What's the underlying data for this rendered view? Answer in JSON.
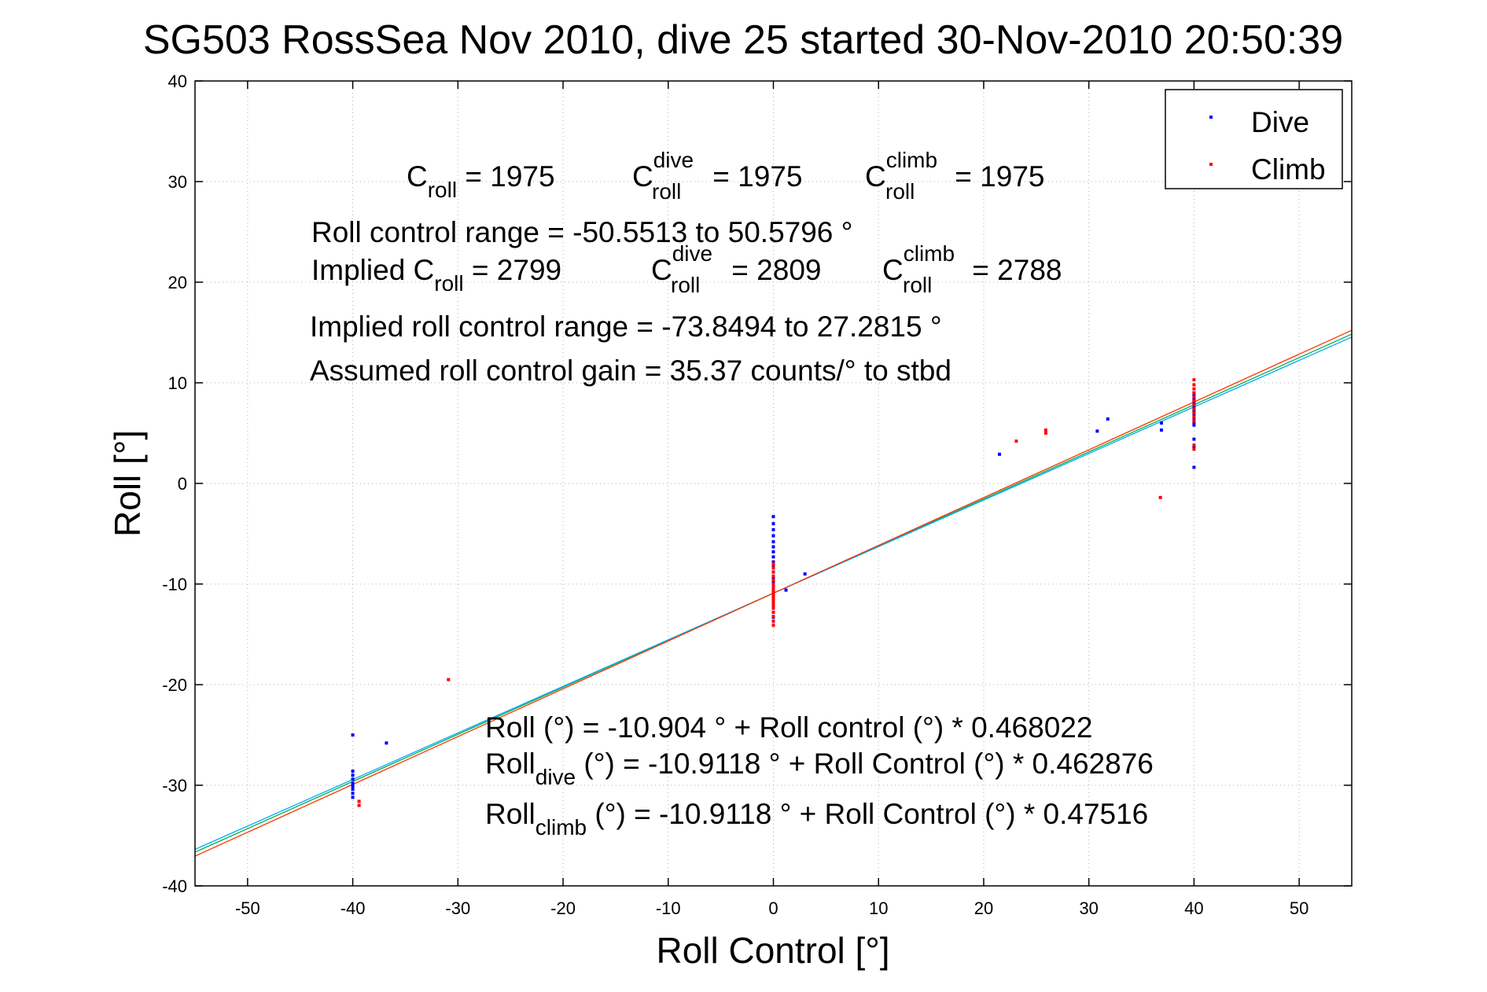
{
  "chart_data": {
    "type": "scatter",
    "title": "SG503 RossSea Nov 2010, dive 25 started 30-Nov-2010 20:50:39",
    "xlabel": "Roll Control [°]",
    "ylabel": "Roll [°]",
    "xlim": [
      -55,
      55
    ],
    "ylim": [
      -40,
      40
    ],
    "xticks": [
      -50,
      -40,
      -30,
      -20,
      -10,
      0,
      10,
      20,
      30,
      40,
      50
    ],
    "yticks": [
      -40,
      -30,
      -20,
      -10,
      0,
      10,
      20,
      30,
      40
    ],
    "xtick_labels": [
      "-50",
      "-40",
      "-30",
      "-20",
      "-10",
      "0",
      "10",
      "20",
      "30",
      "40",
      "50"
    ],
    "ytick_labels": [
      "-40",
      "-30",
      "-20",
      "-10",
      "0",
      "10",
      "20",
      "30",
      "40"
    ],
    "grid": true,
    "grid_style": "dotted",
    "legend": {
      "position": "top-right",
      "entries": [
        "Dive",
        "Climb"
      ]
    },
    "colors": {
      "dive": "#0000ff",
      "climb": "#ff0000",
      "fit_all": "#00b050",
      "fit_dive": "#00aaff",
      "fit_climb": "#ff3300"
    },
    "series": [
      {
        "name": "Dive",
        "color": "#0000ff",
        "points": [
          [
            -40,
            -25.0
          ],
          [
            -40,
            -28.6
          ],
          [
            -40,
            -29.0
          ],
          [
            -40,
            -29.4
          ],
          [
            -40,
            -29.8
          ],
          [
            -40,
            -30.1
          ],
          [
            -40,
            -30.4
          ],
          [
            -40,
            -30.8
          ],
          [
            -40,
            -31.2
          ],
          [
            -36.8,
            -25.8
          ],
          [
            0,
            -3.3
          ],
          [
            0,
            -4.0
          ],
          [
            0,
            -4.6
          ],
          [
            0,
            -5.2
          ],
          [
            0,
            -5.8
          ],
          [
            0,
            -6.3
          ],
          [
            0,
            -6.8
          ],
          [
            0,
            -7.3
          ],
          [
            0,
            -7.8
          ],
          [
            0,
            -8.3
          ],
          [
            0,
            -8.8
          ],
          [
            0,
            -9.3
          ],
          [
            0,
            -9.8
          ],
          [
            0,
            -10.2
          ],
          [
            0,
            -10.6
          ],
          [
            0,
            -11.0
          ],
          [
            0,
            -11.4
          ],
          [
            0,
            -11.8
          ],
          [
            0,
            -12.3
          ],
          [
            0,
            -12.8
          ],
          [
            0,
            -13.3
          ],
          [
            0,
            -13.7
          ],
          [
            1.2,
            -10.6
          ],
          [
            3.0,
            -9.0
          ],
          [
            21.5,
            2.9
          ],
          [
            30.8,
            5.2
          ],
          [
            31.8,
            6.4
          ],
          [
            36.9,
            6.0
          ],
          [
            36.9,
            5.3
          ],
          [
            40,
            9.0
          ],
          [
            40,
            8.7
          ],
          [
            40,
            8.4
          ],
          [
            40,
            8.1
          ],
          [
            40,
            7.8
          ],
          [
            40,
            7.5
          ],
          [
            40,
            7.2
          ],
          [
            40,
            6.9
          ],
          [
            40,
            6.5
          ],
          [
            40,
            6.1
          ],
          [
            40,
            5.8
          ],
          [
            40,
            4.4
          ],
          [
            40,
            3.6
          ],
          [
            40,
            1.6
          ]
        ]
      },
      {
        "name": "Climb",
        "color": "#ff0000",
        "points": [
          [
            -39.4,
            -31.6
          ],
          [
            -39.4,
            -32.0
          ],
          [
            -30.9,
            -19.5
          ],
          [
            0,
            -8.0
          ],
          [
            0,
            -8.4
          ],
          [
            0,
            -8.8
          ],
          [
            0,
            -9.2
          ],
          [
            0,
            -9.6
          ],
          [
            0,
            -10.0
          ],
          [
            0,
            -10.3
          ],
          [
            0,
            -10.6
          ],
          [
            0,
            -10.9
          ],
          [
            0,
            -11.2
          ],
          [
            0,
            -11.5
          ],
          [
            0,
            -11.8
          ],
          [
            0,
            -12.1
          ],
          [
            0,
            -12.4
          ],
          [
            0,
            -12.8
          ],
          [
            0,
            -13.2
          ],
          [
            0,
            -13.7
          ],
          [
            0,
            -14.1
          ],
          [
            23.1,
            4.2
          ],
          [
            25.9,
            5.0
          ],
          [
            25.9,
            5.3
          ],
          [
            36.8,
            -1.4
          ],
          [
            40,
            10.3
          ],
          [
            40,
            9.8
          ],
          [
            40,
            9.4
          ],
          [
            40,
            9.0
          ],
          [
            40,
            8.6
          ],
          [
            40,
            8.2
          ],
          [
            40,
            7.8
          ],
          [
            40,
            7.4
          ],
          [
            40,
            7.0
          ],
          [
            40,
            6.6
          ],
          [
            40,
            6.2
          ],
          [
            40,
            3.8
          ],
          [
            40,
            3.4
          ]
        ]
      }
    ],
    "fit_lines": [
      {
        "color": "#00b050",
        "intercept": -10.904,
        "slope": 0.468022
      },
      {
        "color": "#00aaff",
        "intercept": -10.9118,
        "slope": 0.462876
      },
      {
        "color": "#ff3300",
        "intercept": -10.9118,
        "slope": 0.47516
      }
    ],
    "annotations": {
      "c_roll": {
        "main": "C",
        "sub": "roll",
        "value": " = 1975"
      },
      "c_roll_dive": {
        "main": "C",
        "sup": "dive",
        "sub": "roll",
        "value": " = 1975"
      },
      "c_roll_climb": {
        "main": "C",
        "sup": "climb",
        "sub": "roll",
        "value": " = 1975"
      },
      "roll_control_range": "Roll control range = -50.5513 to 50.5796 °",
      "implied_c_roll": {
        "prefix": "Implied C",
        "sub": "roll",
        "value": " = 2799"
      },
      "implied_c_roll_dive": {
        "main": "C",
        "sup": "dive",
        "sub": "roll",
        "value": " = 2809"
      },
      "implied_c_roll_climb": {
        "main": "C",
        "sup": "climb",
        "sub": "roll",
        "value": " = 2788"
      },
      "implied_range": "Implied roll control range = -73.8494 to 27.2815 °",
      "assumed_gain": "Assumed roll control gain = 35.37 counts/° to stbd",
      "eq_all": "Roll (°) = -10.904 ° + Roll control (°) * 0.468022",
      "eq_dive": {
        "prefix": "Roll",
        "sub": "dive",
        "rest": " (°) = -10.9118 ° + Roll Control (°) * 0.462876"
      },
      "eq_climb": {
        "prefix": "Roll",
        "sub": "climb",
        "rest": " (°) = -10.9118 ° + Roll Control (°) * 0.47516"
      }
    }
  }
}
